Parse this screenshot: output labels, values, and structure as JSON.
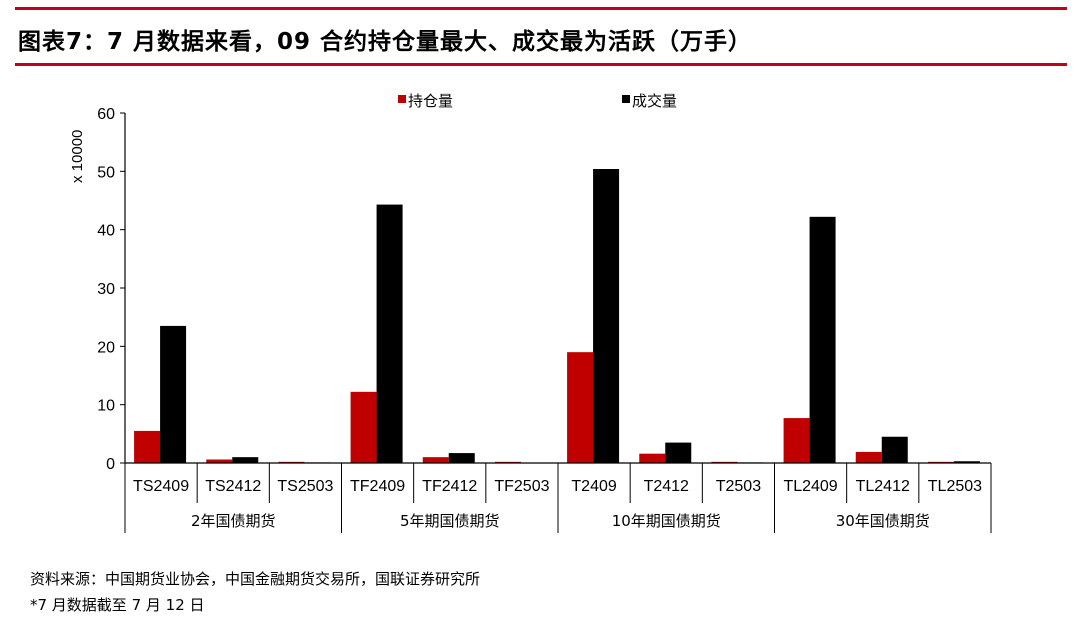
{
  "title": "图表7：7 月数据来看，09 合约持仓量最大、成交最为活跃（万手）",
  "chart_data": {
    "type": "bar",
    "title": "图表7：7 月数据来看，09 合约持仓量最大、成交最为活跃（万手）",
    "ylabel": "x 10000",
    "ylim": [
      0,
      60
    ],
    "yticks": [
      "0",
      "10",
      "20",
      "30",
      "40",
      "50",
      "60"
    ],
    "categories": [
      "TS2409",
      "TS2412",
      "TS2503",
      "TF2409",
      "TF2412",
      "TF2503",
      "T2409",
      "T2412",
      "T2503",
      "TL2409",
      "TL2412",
      "TL2503"
    ],
    "groups": [
      {
        "label": "2年国债期货",
        "count": 3
      },
      {
        "label": "5年期国债期货",
        "count": 3
      },
      {
        "label": "10年期国债期货",
        "count": 3
      },
      {
        "label": "30年国债期货",
        "count": 3
      }
    ],
    "legend_position": "top",
    "series": [
      {
        "name": "持仓量",
        "color": "#c00000",
        "values": [
          5.5,
          0.6,
          0.2,
          12.2,
          1.0,
          0.2,
          19.0,
          1.6,
          0.2,
          7.7,
          1.9,
          0.2
        ]
      },
      {
        "name": "成交量",
        "color": "#000000",
        "values": [
          23.5,
          1.0,
          0.1,
          44.3,
          1.7,
          0.05,
          50.4,
          3.5,
          0.1,
          42.2,
          4.5,
          0.3
        ]
      }
    ]
  },
  "footer": {
    "source": "资料来源：中国期货业协会，中国金融期货交易所，国联证券研究所",
    "note": "*7 月数据截至 7 月 12 日"
  }
}
